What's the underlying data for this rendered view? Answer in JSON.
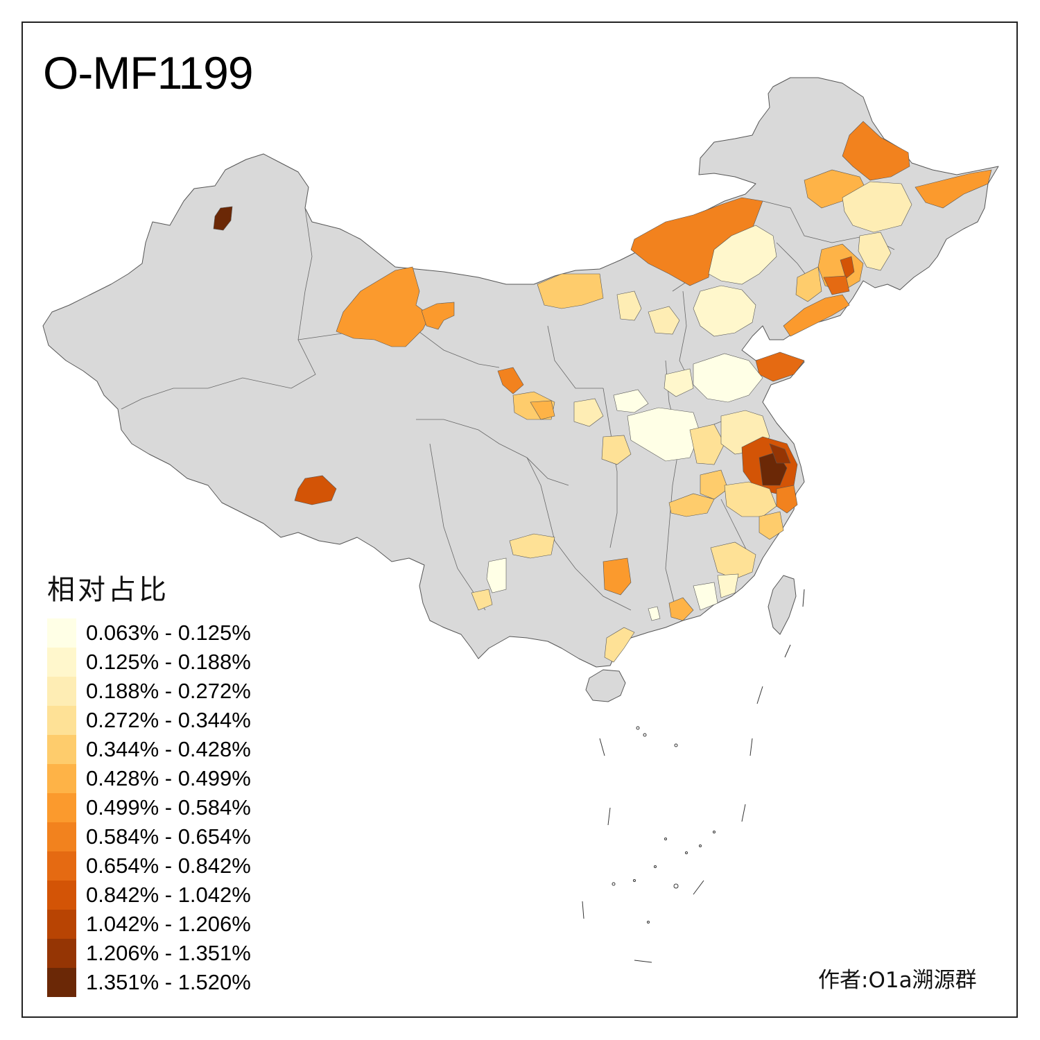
{
  "title": "O-MF1199",
  "legend": {
    "title": "相对占比",
    "items": [
      {
        "label": "0.063% - 0.125%",
        "color": "#FFFFE6"
      },
      {
        "label": "0.125% - 0.188%",
        "color": "#FFF7CC"
      },
      {
        "label": "0.188% - 0.272%",
        "color": "#FEEDB4"
      },
      {
        "label": "0.272% - 0.344%",
        "color": "#FEE196"
      },
      {
        "label": "0.344% - 0.428%",
        "color": "#FECC6C"
      },
      {
        "label": "0.428% - 0.499%",
        "color": "#FEB347"
      },
      {
        "label": "0.499% - 0.584%",
        "color": "#FB9A2D"
      },
      {
        "label": "0.584% - 0.654%",
        "color": "#F2821E"
      },
      {
        "label": "0.654% - 0.842%",
        "color": "#E56A12"
      },
      {
        "label": "0.842% - 1.042%",
        "color": "#D35406"
      },
      {
        "label": "1.042% - 1.206%",
        "color": "#B84403"
      },
      {
        "label": "1.206% - 1.351%",
        "color": "#953504"
      },
      {
        "label": "1.351% - 1.520%",
        "color": "#6B2806"
      }
    ]
  },
  "author": "作者:O1a溯源群",
  "base_color": "#D9D9D9"
}
